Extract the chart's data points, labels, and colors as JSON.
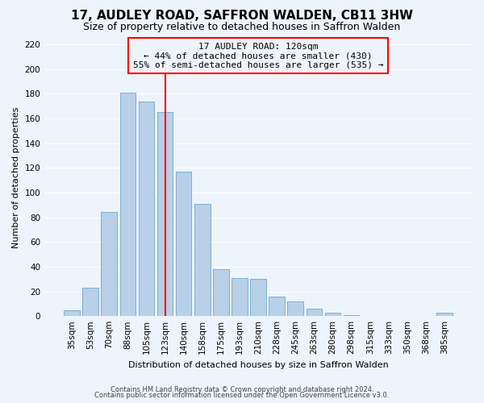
{
  "title": "17, AUDLEY ROAD, SAFFRON WALDEN, CB11 3HW",
  "subtitle": "Size of property relative to detached houses in Saffron Walden",
  "xlabel": "Distribution of detached houses by size in Saffron Walden",
  "ylabel": "Number of detached properties",
  "categories": [
    "35sqm",
    "53sqm",
    "70sqm",
    "88sqm",
    "105sqm",
    "123sqm",
    "140sqm",
    "158sqm",
    "175sqm",
    "193sqm",
    "210sqm",
    "228sqm",
    "245sqm",
    "263sqm",
    "280sqm",
    "298sqm",
    "315sqm",
    "333sqm",
    "350sqm",
    "368sqm",
    "385sqm"
  ],
  "values": [
    5,
    23,
    84,
    181,
    174,
    165,
    117,
    91,
    38,
    31,
    30,
    16,
    12,
    6,
    3,
    1,
    0,
    0,
    0,
    0,
    3
  ],
  "bar_color": "#b8d0e8",
  "bar_edgecolor": "#7ab0d4",
  "redline_index": 5,
  "ylim": [
    0,
    225
  ],
  "yticks": [
    0,
    20,
    40,
    60,
    80,
    100,
    120,
    140,
    160,
    180,
    200,
    220
  ],
  "annotation_title": "17 AUDLEY ROAD: 120sqm",
  "annotation_line1": "← 44% of detached houses are smaller (430)",
  "annotation_line2": "55% of semi-detached houses are larger (535) →",
  "footer1": "Contains HM Land Registry data © Crown copyright and database right 2024.",
  "footer2": "Contains public sector information licensed under the Open Government Licence v3.0.",
  "background_color": "#eef4fb",
  "grid_color": "#ffffff",
  "title_fontsize": 11,
  "subtitle_fontsize": 9,
  "axis_label_fontsize": 8,
  "tick_fontsize": 7.5,
  "annotation_fontsize": 8,
  "footer_fontsize": 6
}
